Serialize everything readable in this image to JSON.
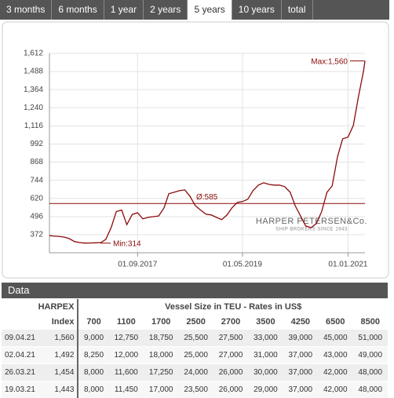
{
  "tabs": {
    "items": [
      "3 months",
      "6 months",
      "1 year",
      "2 years",
      "5 years",
      "10 years",
      "total"
    ],
    "active": 4
  },
  "chart_data": {
    "type": "line",
    "x": [
      "09.04.2016",
      "01.05.2016",
      "01.06.2016",
      "01.07.2016",
      "01.08.2016",
      "01.09.2016",
      "01.10.2016",
      "01.11.2016",
      "01.12.2016",
      "01.01.2017",
      "01.02.2017",
      "01.03.2017",
      "01.04.2017",
      "01.05.2017",
      "01.06.2017",
      "01.07.2017",
      "01.08.2017",
      "01.09.2017",
      "01.10.2017",
      "01.11.2017",
      "01.12.2017",
      "01.01.2018",
      "01.02.2018",
      "01.03.2018",
      "01.04.2018",
      "01.05.2018",
      "01.06.2018",
      "01.07.2018",
      "01.08.2018",
      "01.09.2018",
      "01.10.2018",
      "01.11.2018",
      "01.12.2018",
      "01.01.2019",
      "01.02.2019",
      "01.03.2019",
      "01.04.2019",
      "01.05.2019",
      "01.06.2019",
      "01.07.2019",
      "01.08.2019",
      "01.09.2019",
      "01.10.2019",
      "01.11.2019",
      "01.12.2019",
      "01.01.2020",
      "01.02.2020",
      "01.03.2020",
      "01.04.2020",
      "01.05.2020",
      "01.06.2020",
      "01.07.2020",
      "01.08.2020",
      "01.09.2020",
      "01.10.2020",
      "01.11.2020",
      "01.12.2020",
      "01.01.2021",
      "01.02.2021",
      "01.03.2021",
      "01.04.2021",
      "09.04.2021"
    ],
    "series": [
      {
        "name": "HARPEX",
        "color": "#8b0a0a",
        "values": [
          365,
          363,
          360,
          356,
          345,
          325,
          318,
          314,
          315,
          316,
          318,
          340,
          420,
          530,
          540,
          440,
          510,
          522,
          480,
          490,
          495,
          500,
          555,
          652,
          662,
          673,
          678,
          635,
          570,
          540,
          512,
          507,
          490,
          475,
          507,
          555,
          592,
          598,
          614,
          673,
          711,
          727,
          716,
          711,
          711,
          700,
          662,
          570,
          500,
          431,
          420,
          447,
          528,
          662,
          705,
          904,
          1028,
          1039,
          1119,
          1307,
          1492,
          1560
        ]
      }
    ],
    "xlim": [
      "09.04.2016",
      "09.04.2021"
    ],
    "xticks": [
      "01.09.2017",
      "01.05.2019",
      "01.01.2021"
    ],
    "ylim": [
      248,
      1612
    ],
    "yticks": [
      {
        "value": 372,
        "label": "372"
      },
      {
        "value": 496,
        "label": "496"
      },
      {
        "value": 620,
        "label": "620"
      },
      {
        "value": 744,
        "label": "744"
      },
      {
        "value": 868,
        "label": "868"
      },
      {
        "value": 992,
        "label": "992"
      },
      {
        "value": 1116,
        "label": "1,116"
      },
      {
        "value": 1240,
        "label": "1,240"
      },
      {
        "value": 1364,
        "label": "1,364"
      },
      {
        "value": 1488,
        "label": "1,488"
      },
      {
        "value": 1612,
        "label": "1,612"
      }
    ],
    "grid": true,
    "max": {
      "value": 1560,
      "label": "Max:1,560"
    },
    "min": {
      "value": 314,
      "label": "Min:314"
    },
    "average": {
      "value": 585,
      "label": "Ø:585"
    },
    "watermark": {
      "title": "HARPER PETERSEN&Co.",
      "subtitle": "SHIP BROKERS SINCE 1943"
    }
  },
  "table": {
    "title": "Data",
    "header": [
      "HARPEX",
      "Vessel Size in TEU - Rates in US$"
    ],
    "columns": [
      "Index",
      "700",
      "1100",
      "1700",
      "2500",
      "2700",
      "3500",
      "4250",
      "6500",
      "8500"
    ],
    "rows": [
      [
        "09.04.21",
        "1,560",
        "9,000",
        "12,750",
        "18,750",
        "25,500",
        "27,500",
        "33,000",
        "39,000",
        "45,000",
        "51,000"
      ],
      [
        "02.04.21",
        "1,492",
        "8,250",
        "12,000",
        "18,000",
        "25,000",
        "27,000",
        "31,000",
        "37,000",
        "43,000",
        "49,000"
      ],
      [
        "26.03.21",
        "1,454",
        "8,000",
        "11,600",
        "17,250",
        "24,000",
        "26,000",
        "30,000",
        "37,000",
        "42,000",
        "48,000"
      ],
      [
        "19.03.21",
        "1,443",
        "8,000",
        "11,450",
        "17,000",
        "23,500",
        "26,000",
        "29,000",
        "37,000",
        "42,000",
        "48,000"
      ]
    ]
  }
}
